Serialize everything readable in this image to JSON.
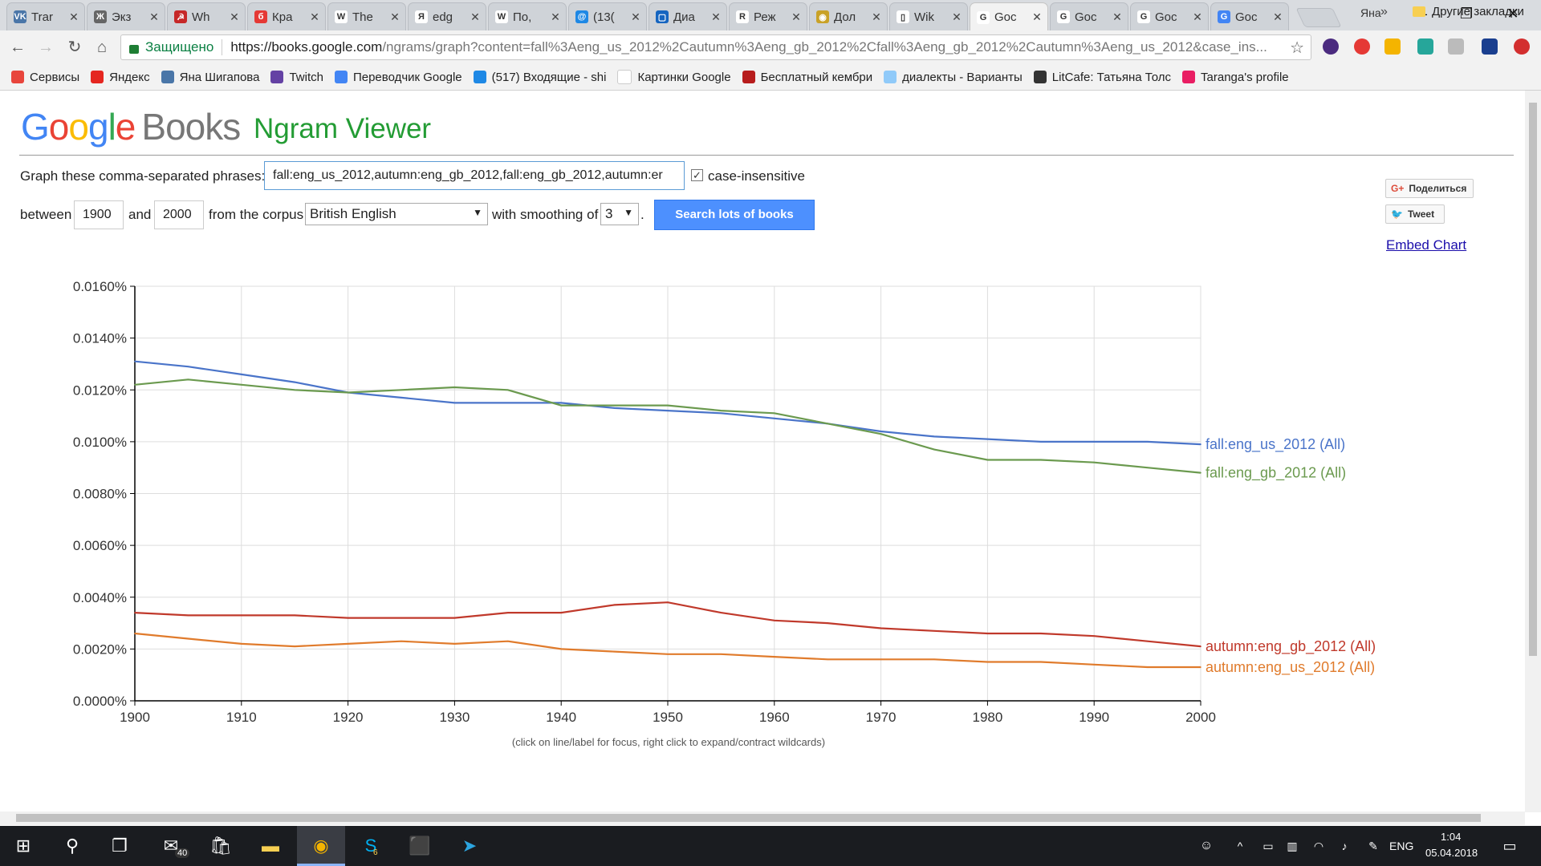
{
  "browser": {
    "tabs": [
      {
        "title": "Trar",
        "fav_color": "#4a76a8",
        "fav_glyph": "VK"
      },
      {
        "title": "Экз",
        "fav_color": "#666666",
        "fav_glyph": "Ж"
      },
      {
        "title": "Wh",
        "fav_color": "#c62828",
        "fav_glyph": "☭"
      },
      {
        "title": "Кра",
        "fav_color": "#e53935",
        "fav_glyph": "б"
      },
      {
        "title": "The",
        "fav_color": "#ffffff",
        "fav_glyph": "W"
      },
      {
        "title": "edg",
        "fav_color": "#ffffff",
        "fav_glyph": "Я"
      },
      {
        "title": "По,",
        "fav_color": "#ffffff",
        "fav_glyph": "W"
      },
      {
        "title": "(13(",
        "fav_color": "#1e88e5",
        "fav_glyph": "@"
      },
      {
        "title": "Диа",
        "fav_color": "#1565c0",
        "fav_glyph": "▢"
      },
      {
        "title": "Реж",
        "fav_color": "#ffffff",
        "fav_glyph": "R"
      },
      {
        "title": "Дол",
        "fav_color": "#c9a227",
        "fav_glyph": "◉"
      },
      {
        "title": "Wik",
        "fav_color": "#ffffff",
        "fav_glyph": "▯"
      },
      {
        "title": "Goc",
        "fav_color": "#ffffff",
        "fav_glyph": "G",
        "active": true
      },
      {
        "title": "Goc",
        "fav_color": "#ffffff",
        "fav_glyph": "G"
      },
      {
        "title": "Goc",
        "fav_color": "#ffffff",
        "fav_glyph": "G"
      },
      {
        "title": "Goc",
        "fav_color": "#4285f4",
        "fav_glyph": "G"
      }
    ],
    "tab_close": "✕",
    "profile": "Яна",
    "window_controls": {
      "minimize": "—",
      "maximize": "❐",
      "close": "✕"
    },
    "nav": {
      "back": "←",
      "forward": "→",
      "reload": "↻",
      "home": "⌂"
    },
    "address": {
      "secure_label": "Защищено",
      "url_host": "https://books.google.com",
      "url_path": "/ngrams/graph?content=fall%3Aeng_us_2012%2Cautumn%3Aeng_gb_2012%2Cfall%3Aeng_gb_2012%2Cautumn%3Aeng_us_2012&case_ins..."
    },
    "star": "☆",
    "bookmarks": [
      {
        "label": "Сервисы",
        "color": "#e8453c"
      },
      {
        "label": "Яндекс",
        "color": "#e52620"
      },
      {
        "label": "Яна Шигапова",
        "color": "#4a76a8"
      },
      {
        "label": "Twitch",
        "color": "#6441a4"
      },
      {
        "label": "Переводчик Google",
        "color": "#4285f4"
      },
      {
        "label": "(517) Входящие - shi",
        "color": "#1e88e5"
      },
      {
        "label": "Картинки Google",
        "color": "#ffffff"
      },
      {
        "label": "Бесплатный кембри",
        "color": "#b71c1c"
      },
      {
        "label": "диалекты - Варианты",
        "color": "#90caf9"
      },
      {
        "label": "LitCafe: Татьяна Толс",
        "color": "#333333"
      },
      {
        "label": "Taranga's profile",
        "color": "#e91e63"
      }
    ],
    "bookmarks_more": "»",
    "other_bookmarks": "Другие закладки"
  },
  "page": {
    "logo_letters": [
      "G",
      "o",
      "o",
      "g",
      "l",
      "e"
    ],
    "logo_books": "Books",
    "product": "Ngram Viewer",
    "form": {
      "phrases_label": "Graph these comma-separated phrases:",
      "phrases_value": "fall:eng_us_2012,autumn:eng_gb_2012,fall:eng_gb_2012,autumn:er",
      "case_checked": "✓",
      "case_label": "case-insensitive",
      "between_label": "between",
      "start_year": "1900",
      "and_label": "and",
      "end_year": "2000",
      "corpus_label": "from the corpus",
      "corpus_value": "British English",
      "smoothing_label": "with smoothing of",
      "smoothing_value": "3",
      "period": ".",
      "search_button": "Search lots of books"
    },
    "share": {
      "gplus": "Поделиться",
      "tweet": "Tweet",
      "embed": "Embed Chart"
    },
    "hint": "(click on line/label for focus, right click to expand/contract wildcards)"
  },
  "chart_data": {
    "type": "line",
    "xlabel": "",
    "ylabel": "",
    "xlim": [
      1900,
      2000
    ],
    "ylim": [
      0,
      0.016
    ],
    "x_ticks": [
      "1900",
      "1910",
      "1920",
      "1930",
      "1940",
      "1950",
      "1960",
      "1970",
      "1980",
      "1990",
      "2000"
    ],
    "y_ticks": [
      "0.0000%",
      "0.0020%",
      "0.0040%",
      "0.0060%",
      "0.0080%",
      "0.0100%",
      "0.0120%",
      "0.0140%",
      "0.0160%"
    ],
    "grid": true,
    "legend_position": "right-end-labels",
    "x": [
      1900,
      1905,
      1910,
      1915,
      1920,
      1925,
      1930,
      1935,
      1940,
      1945,
      1950,
      1955,
      1960,
      1965,
      1970,
      1975,
      1980,
      1985,
      1990,
      1995,
      2000
    ],
    "series": [
      {
        "name": "fall:eng_us_2012 (All)",
        "color": "#4a74c9",
        "values": [
          0.0131,
          0.0129,
          0.0126,
          0.0123,
          0.0119,
          0.0117,
          0.0115,
          0.0115,
          0.0115,
          0.0113,
          0.0112,
          0.0111,
          0.0109,
          0.0107,
          0.0104,
          0.0102,
          0.0101,
          0.01,
          0.01,
          0.01,
          0.0099
        ]
      },
      {
        "name": "fall:eng_gb_2012 (All)",
        "color": "#6b9a4f",
        "values": [
          0.0122,
          0.0124,
          0.0122,
          0.012,
          0.0119,
          0.012,
          0.0121,
          0.012,
          0.0114,
          0.0114,
          0.0114,
          0.0112,
          0.0111,
          0.0107,
          0.0103,
          0.0097,
          0.0093,
          0.0093,
          0.0092,
          0.009,
          0.0088
        ]
      },
      {
        "name": "autumn:eng_gb_2012 (All)",
        "color": "#c0392b",
        "values": [
          0.0034,
          0.0033,
          0.0033,
          0.0033,
          0.0032,
          0.0032,
          0.0032,
          0.0034,
          0.0034,
          0.0037,
          0.0038,
          0.0034,
          0.0031,
          0.003,
          0.0028,
          0.0027,
          0.0026,
          0.0026,
          0.0025,
          0.0023,
          0.0021
        ]
      },
      {
        "name": "autumn:eng_us_2012 (All)",
        "color": "#e07b2c",
        "values": [
          0.0026,
          0.0024,
          0.0022,
          0.0021,
          0.0022,
          0.0023,
          0.0022,
          0.0023,
          0.002,
          0.0019,
          0.0018,
          0.0018,
          0.0017,
          0.0016,
          0.0016,
          0.0016,
          0.0015,
          0.0015,
          0.0014,
          0.0013,
          0.0013
        ]
      }
    ]
  },
  "taskbar": {
    "badge_mail": "40",
    "badge_skype": "6",
    "lang": "ENG",
    "time": "1:04",
    "date": "05.04.2018"
  }
}
